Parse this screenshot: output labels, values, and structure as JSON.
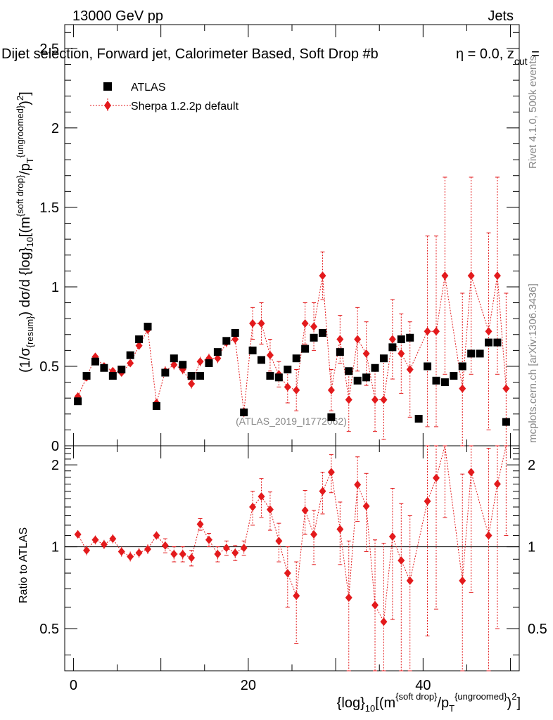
{
  "header": {
    "left": "13000 GeV pp",
    "right": "Jets",
    "title": "Dijet selection, Forward jet, Calorimeter Based, Soft Drop #b",
    "title_eta": "η = 0.0, z",
    "title_cut": "cut",
    "title_eq": " ="
  },
  "side": {
    "rivet": "Rivet 4.1.0,  500k events",
    "mcplots": "mcplots.cern.ch [arXiv:1306.3436]"
  },
  "watermark": "(ATLAS_2019_I1772062)",
  "axes": {
    "ylabel_main_1": "(1/σ",
    "ylabel_main_sub1": "{resum}",
    "ylabel_main_2": ") dσ/d {log}",
    "ylabel_main_sub2": "10",
    "ylabel_main_3": "[(m",
    "ylabel_main_sup1": "{soft drop}",
    "ylabel_main_4": "/p",
    "ylabel_main_sub3": "T",
    "ylabel_main_sup2": "{ungroomed}",
    "ylabel_main_5": ")",
    "ylabel_main_sup3": "2",
    "ylabel_main_6": "]",
    "ylabel_ratio": "Ratio to ATLAS",
    "xlabel_1": "{log}",
    "xlabel_sub1": "10",
    "xlabel_2": "[(m",
    "xlabel_sup1": "{soft drop}",
    "xlabel_3": "/p",
    "xlabel_sub2": "T",
    "xlabel_sup2": "{ungroomed}",
    "xlabel_4": ")",
    "xlabel_sup3": "2",
    "xlabel_5": "]"
  },
  "legend": {
    "atlas": "ATLAS",
    "sherpa": "Sherpa 1.2.2p default"
  },
  "colors": {
    "atlas": "#000000",
    "sherpa": "#e31a1c"
  },
  "chart_data": {
    "type": "scatter",
    "x_range": [
      -1,
      51
    ],
    "x_ticks": [
      0,
      20,
      40
    ],
    "main": {
      "ylim": [
        0,
        2.65
      ],
      "y_ticks": [
        0.5,
        1,
        1.5,
        2,
        2.5
      ],
      "y_tick_labels": [
        "0.5",
        "1",
        "1.5",
        "2",
        "2.5"
      ]
    },
    "ratio": {
      "ylim": [
        0.35,
        2.35
      ],
      "y_ticks": [
        0.5,
        1,
        2
      ],
      "y_tick_labels": [
        "0.5",
        "1",
        "2"
      ],
      "reference": 1
    },
    "series": [
      {
        "name": "ATLAS",
        "marker": "square",
        "x": [
          0.5,
          1.5,
          2.5,
          3.5,
          4.5,
          5.5,
          6.5,
          7.5,
          8.5,
          9.5,
          10.5,
          11.5,
          12.5,
          13.5,
          14.5,
          15.5,
          16.5,
          17.5,
          18.5,
          19.5,
          20.5,
          21.5,
          22.5,
          23.5,
          24.5,
          25.5,
          26.5,
          27.5,
          28.5,
          29.5,
          30.5,
          31.5,
          32.5,
          33.5,
          34.5,
          35.5,
          36.5,
          37.5,
          38.5,
          39.5,
          40.5,
          41.5,
          42.5,
          43.5,
          44.5,
          45.5,
          46.5,
          47.5,
          48.5,
          49.5
        ],
        "y": [
          0.28,
          0.44,
          0.53,
          0.49,
          0.44,
          0.48,
          0.57,
          0.67,
          0.75,
          0.25,
          0.46,
          0.55,
          0.51,
          0.44,
          0.44,
          0.52,
          0.59,
          0.66,
          0.71,
          0.21,
          0.6,
          0.54,
          0.44,
          0.43,
          0.48,
          0.55,
          0.61,
          0.68,
          0.71,
          0.18,
          0.59,
          0.47,
          0.41,
          0.43,
          0.49,
          0.55,
          0.62,
          0.67,
          0.68,
          0.17,
          0.5,
          0.41,
          0.4,
          0.44,
          0.5,
          0.58,
          0.58,
          0.65,
          0.65,
          0.15
        ]
      },
      {
        "name": "Sherpa 1.2.2p default",
        "marker": "diamond",
        "x": [
          0.5,
          1.5,
          2.5,
          3.5,
          4.5,
          5.5,
          6.5,
          7.5,
          8.5,
          9.5,
          10.5,
          11.5,
          12.5,
          13.5,
          14.5,
          15.5,
          16.5,
          17.5,
          18.5,
          19.5,
          20.5,
          21.5,
          22.5,
          23.5,
          24.5,
          25.5,
          26.5,
          27.5,
          28.5,
          29.5,
          30.5,
          31.5,
          32.5,
          33.5,
          34.5,
          35.5,
          36.5,
          37.5,
          38.5,
          39.5,
          40.5,
          41.5,
          42.5,
          43.5,
          44.5,
          45.5,
          46.5,
          47.5,
          48.5,
          49.5
        ],
        "y": [
          0.31,
          0.43,
          0.56,
          0.5,
          0.47,
          0.46,
          0.52,
          0.63,
          0.73,
          0.27,
          0.47,
          0.51,
          0.48,
          0.39,
          0.53,
          0.55,
          0.55,
          0.65,
          0.67,
          0.21,
          0.77,
          0.77,
          0.57,
          0.45,
          0.37,
          0.35,
          0.77,
          0.75,
          1.07,
          0.35,
          0.67,
          0.29,
          0.67,
          0.58,
          0.29,
          0.29,
          0.67,
          0.58,
          0.48,
          null,
          0.72,
          0.72,
          1.07,
          null,
          0.36,
          1.07,
          null,
          0.72,
          1.07,
          0.36
        ],
        "err": [
          0.02,
          0.02,
          0.02,
          0.02,
          0.02,
          0.02,
          0.02,
          0.02,
          0.02,
          0.02,
          0.03,
          0.03,
          0.03,
          0.03,
          0.03,
          0.03,
          0.03,
          0.03,
          0.03,
          0.03,
          0.1,
          0.13,
          0.1,
          0.08,
          0.1,
          0.13,
          0.13,
          0.15,
          0.15,
          0.13,
          0.15,
          0.2,
          0.2,
          0.2,
          0.2,
          0.25,
          0.25,
          0.25,
          0.3,
          null,
          0.6,
          0.6,
          0.62,
          null,
          0.6,
          0.62,
          null,
          0.62,
          0.62,
          0.6
        ]
      }
    ],
    "ratio_series": {
      "name": "Sherpa/ATLAS",
      "x": [
        0.5,
        1.5,
        2.5,
        3.5,
        4.5,
        5.5,
        6.5,
        7.5,
        8.5,
        9.5,
        10.5,
        11.5,
        12.5,
        13.5,
        14.5,
        15.5,
        16.5,
        17.5,
        18.5,
        19.5,
        20.5,
        21.5,
        22.5,
        23.5,
        24.5,
        25.5,
        26.5,
        27.5,
        28.5,
        29.5,
        30.5,
        31.5,
        32.5,
        33.5,
        34.5,
        35.5,
        36.5,
        37.5,
        38.5,
        39.5,
        40.5,
        41.5,
        42.5,
        43.5,
        44.5,
        45.5,
        46.5,
        47.5,
        48.5,
        49.5
      ],
      "y": [
        1.11,
        0.97,
        1.06,
        1.02,
        1.07,
        0.96,
        0.92,
        0.95,
        0.98,
        1.1,
        1.01,
        0.94,
        0.94,
        0.91,
        1.21,
        1.06,
        0.94,
        0.99,
        0.95,
        0.99,
        1.4,
        1.53,
        1.37,
        1.05,
        0.8,
        0.66,
        1.36,
        1.11,
        1.6,
        1.88,
        1.16,
        0.65,
        1.69,
        1.41,
        0.61,
        0.53,
        1.09,
        0.89,
        0.75,
        null,
        1.47,
        1.79,
        2.58,
        null,
        0.75,
        1.88,
        null,
        1.1,
        1.7,
        2.4
      ],
      "err": [
        0.04,
        0.04,
        0.04,
        0.04,
        0.04,
        0.04,
        0.04,
        0.04,
        0.04,
        0.04,
        0.06,
        0.06,
        0.06,
        0.06,
        0.06,
        0.06,
        0.06,
        0.06,
        0.06,
        0.06,
        0.2,
        0.25,
        0.22,
        0.17,
        0.2,
        0.22,
        0.25,
        0.25,
        0.28,
        0.3,
        0.3,
        0.4,
        0.45,
        0.45,
        0.45,
        0.5,
        0.55,
        0.55,
        0.55,
        null,
        1.0,
        1.2,
        1.3,
        null,
        1.1,
        1.2,
        null,
        1.2,
        1.2,
        1.3
      ]
    }
  }
}
